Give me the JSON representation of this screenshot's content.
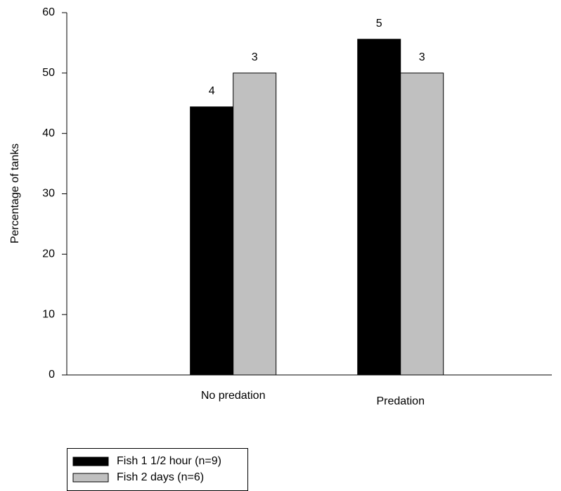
{
  "chart_data": {
    "type": "bar",
    "y_label": "Percentage of tanks",
    "categories": [
      "No predation",
      "Predation"
    ],
    "series": [
      {
        "name": "Fish 1 1/2 hour (n=9)",
        "color": "#000000",
        "values": [
          44.4,
          55.6
        ],
        "counts": [
          4,
          5
        ]
      },
      {
        "name": "Fish 2 days (n=6)",
        "color": "#c0c0c0",
        "values": [
          50,
          50
        ],
        "counts": [
          3,
          3
        ]
      }
    ],
    "ylim": [
      0,
      60
    ],
    "yticks": [
      0,
      10,
      20,
      30,
      40,
      50,
      60
    ],
    "grid": false
  }
}
